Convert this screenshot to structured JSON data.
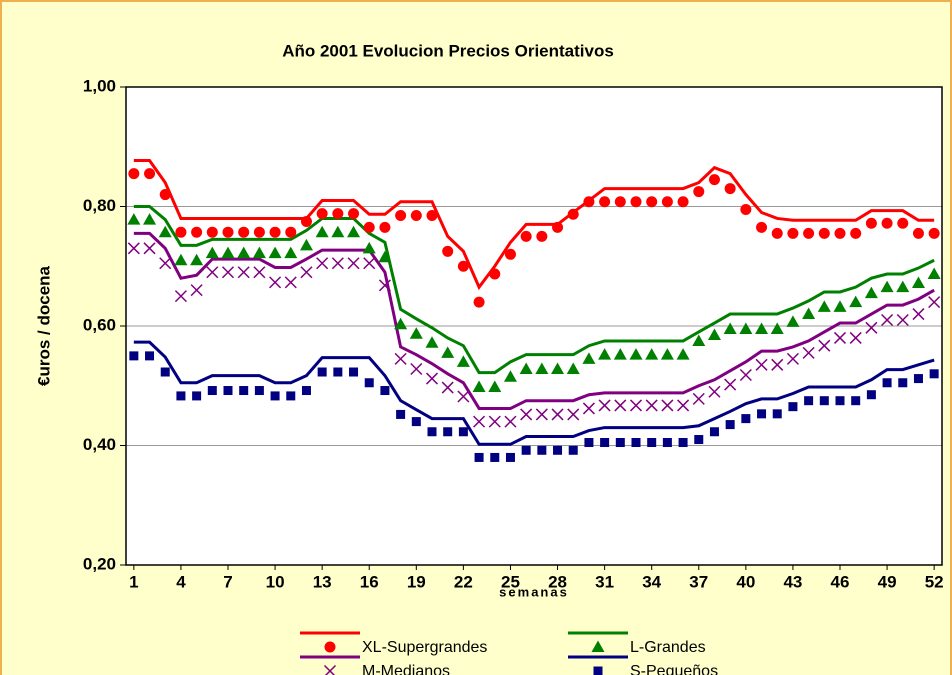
{
  "chart_data": {
    "type": "line",
    "title": "Año 2001 Evolucion Precios Orientativos",
    "x_label": "semanas",
    "y_label": "€uros / docena",
    "categories": [
      "1",
      null,
      null,
      "4",
      null,
      null,
      "7",
      null,
      null,
      "10",
      null,
      null,
      "13",
      null,
      null,
      "16",
      null,
      null,
      "19",
      null,
      null,
      "22",
      null,
      null,
      "25",
      null,
      null,
      "28",
      null,
      null,
      "31",
      null,
      null,
      "34",
      null,
      null,
      "37",
      null,
      null,
      "40",
      null,
      null,
      "43",
      null,
      null,
      "46",
      null,
      null,
      "49",
      null,
      null,
      "52"
    ],
    "ylim": [
      0.2,
      1.0
    ],
    "yticks": [
      {
        "value": 0.2,
        "label": "0,20"
      },
      {
        "value": 0.4,
        "label": "0,40"
      },
      {
        "value": 0.6,
        "label": "0,60"
      },
      {
        "value": 0.8,
        "label": "0,80"
      },
      {
        "value": 1.0,
        "label": "1,00"
      }
    ],
    "grid": true,
    "series": [
      {
        "name": "XL-Supergrandes",
        "color": "#ff0000",
        "marker": "circle",
        "values": [
          0.877,
          0.877,
          0.84,
          0.78,
          0.78,
          0.78,
          0.78,
          0.78,
          0.78,
          0.78,
          0.78,
          0.78,
          0.81,
          0.81,
          0.81,
          0.787,
          0.787,
          0.808,
          0.808,
          0.808,
          0.75,
          0.725,
          0.665,
          0.7,
          0.74,
          0.77,
          0.77,
          0.77,
          0.79,
          0.81,
          0.83,
          0.83,
          0.83,
          0.83,
          0.83,
          0.83,
          0.84,
          0.865,
          0.855,
          0.82,
          0.79,
          0.78,
          0.777,
          0.777,
          0.777,
          0.777,
          0.777,
          0.793,
          0.793,
          0.793,
          0.777,
          0.777
        ],
        "marker_values": [
          0.855,
          0.855,
          0.82,
          0.757,
          0.757,
          0.757,
          0.757,
          0.757,
          0.757,
          0.757,
          0.757,
          0.775,
          0.788,
          0.788,
          0.788,
          0.765,
          0.765,
          0.785,
          0.785,
          0.785,
          0.725,
          0.7,
          0.64,
          0.687,
          0.72,
          0.75,
          0.75,
          0.765,
          0.787,
          0.808,
          0.808,
          0.808,
          0.808,
          0.808,
          0.808,
          0.808,
          0.825,
          0.845,
          0.83,
          0.795,
          0.765,
          0.755,
          0.755,
          0.755,
          0.755,
          0.755,
          0.755,
          0.772,
          0.772,
          0.772,
          0.755,
          0.755
        ]
      },
      {
        "name": "L-Grandes",
        "color": "#008000",
        "marker": "triangle",
        "values": [
          0.8,
          0.8,
          0.778,
          0.735,
          0.735,
          0.745,
          0.745,
          0.745,
          0.745,
          0.745,
          0.745,
          0.76,
          0.78,
          0.78,
          0.78,
          0.755,
          0.74,
          0.628,
          0.612,
          0.597,
          0.58,
          0.567,
          0.522,
          0.522,
          0.54,
          0.552,
          0.552,
          0.552,
          0.552,
          0.567,
          0.575,
          0.575,
          0.575,
          0.575,
          0.575,
          0.575,
          0.59,
          0.605,
          0.62,
          0.62,
          0.62,
          0.62,
          0.63,
          0.642,
          0.657,
          0.657,
          0.665,
          0.68,
          0.687,
          0.687,
          0.697,
          0.71
        ],
        "marker_values": [
          0.778,
          0.778,
          0.757,
          0.71,
          0.71,
          0.722,
          0.722,
          0.722,
          0.722,
          0.722,
          0.722,
          0.735,
          0.757,
          0.757,
          0.757,
          0.73,
          0.715,
          0.603,
          0.587,
          0.572,
          0.555,
          0.54,
          0.498,
          0.498,
          0.515,
          0.528,
          0.528,
          0.528,
          0.528,
          0.545,
          0.552,
          0.552,
          0.552,
          0.552,
          0.552,
          0.552,
          0.575,
          0.585,
          0.595,
          0.595,
          0.595,
          0.595,
          0.607,
          0.62,
          0.632,
          0.632,
          0.64,
          0.655,
          0.665,
          0.665,
          0.672,
          0.687
        ]
      },
      {
        "name": "M-Medianos",
        "color": "#800080",
        "marker": "cross",
        "values": [
          0.755,
          0.755,
          0.73,
          0.68,
          0.685,
          0.712,
          0.712,
          0.712,
          0.712,
          0.698,
          0.698,
          0.712,
          0.727,
          0.727,
          0.727,
          0.727,
          0.69,
          0.565,
          0.552,
          0.537,
          0.52,
          0.505,
          0.462,
          0.462,
          0.462,
          0.475,
          0.475,
          0.475,
          0.475,
          0.485,
          0.488,
          0.488,
          0.488,
          0.488,
          0.488,
          0.488,
          0.5,
          0.51,
          0.525,
          0.54,
          0.558,
          0.558,
          0.565,
          0.575,
          0.59,
          0.605,
          0.605,
          0.62,
          0.635,
          0.635,
          0.645,
          0.66
        ],
        "marker_values": [
          0.73,
          0.73,
          0.705,
          0.65,
          0.66,
          0.69,
          0.69,
          0.69,
          0.69,
          0.673,
          0.673,
          0.69,
          0.705,
          0.705,
          0.705,
          0.705,
          0.668,
          0.545,
          0.528,
          0.512,
          0.497,
          0.482,
          0.44,
          0.44,
          0.44,
          0.452,
          0.452,
          0.452,
          0.452,
          0.462,
          0.467,
          0.467,
          0.467,
          0.467,
          0.467,
          0.467,
          0.478,
          0.49,
          0.502,
          0.518,
          0.535,
          0.535,
          0.545,
          0.555,
          0.567,
          0.58,
          0.58,
          0.597,
          0.61,
          0.61,
          0.62,
          0.64
        ]
      },
      {
        "name": "S-Pequeños",
        "color": "#000080",
        "marker": "square",
        "values": [
          0.573,
          0.573,
          0.548,
          0.505,
          0.505,
          0.517,
          0.517,
          0.517,
          0.517,
          0.505,
          0.505,
          0.517,
          0.547,
          0.547,
          0.547,
          0.547,
          0.517,
          0.475,
          0.46,
          0.445,
          0.445,
          0.445,
          0.402,
          0.402,
          0.402,
          0.415,
          0.415,
          0.415,
          0.415,
          0.425,
          0.43,
          0.43,
          0.43,
          0.43,
          0.43,
          0.43,
          0.433,
          0.445,
          0.457,
          0.47,
          0.478,
          0.478,
          0.487,
          0.498,
          0.498,
          0.498,
          0.498,
          0.51,
          0.527,
          0.527,
          0.535,
          0.543
        ],
        "marker_values": [
          0.55,
          0.55,
          0.523,
          0.483,
          0.483,
          0.492,
          0.492,
          0.492,
          0.492,
          0.483,
          0.483,
          0.492,
          0.523,
          0.523,
          0.523,
          0.505,
          0.492,
          0.452,
          0.44,
          0.423,
          0.423,
          0.423,
          0.38,
          0.38,
          0.38,
          0.392,
          0.392,
          0.392,
          0.392,
          0.405,
          0.405,
          0.405,
          0.405,
          0.405,
          0.405,
          0.405,
          0.41,
          0.423,
          0.435,
          0.445,
          0.453,
          0.453,
          0.465,
          0.475,
          0.475,
          0.475,
          0.475,
          0.485,
          0.505,
          0.505,
          0.512,
          0.52
        ]
      }
    ]
  }
}
